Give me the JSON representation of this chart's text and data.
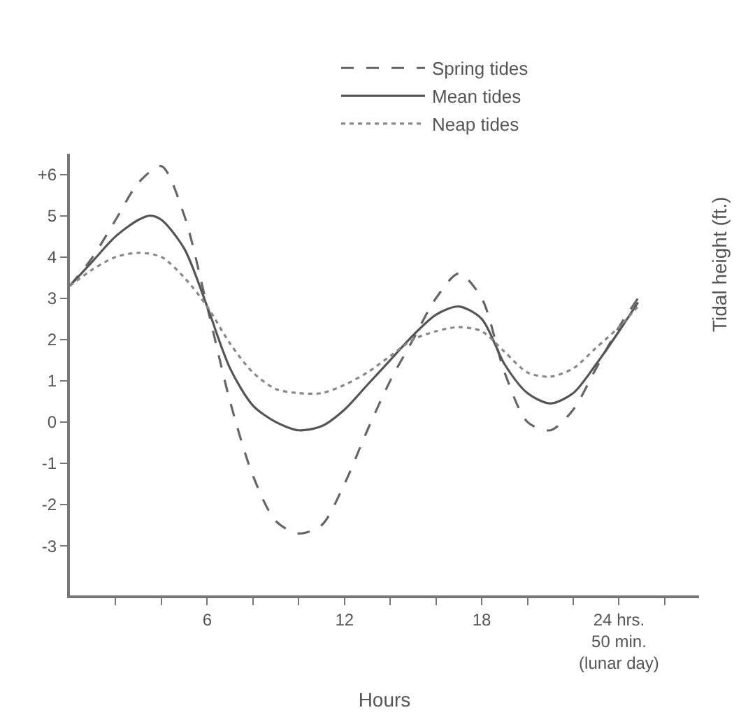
{
  "chart_data": {
    "type": "line",
    "xlabel": "Hours",
    "ylabel": "Tidal height (ft.)",
    "xlim": [
      0,
      27.5
    ],
    "ylim": [
      -4.2,
      6.5
    ],
    "xticks": [
      {
        "value": 2,
        "label": null
      },
      {
        "value": 4,
        "label": null
      },
      6,
      {
        "value": 8,
        "label": null
      },
      {
        "value": 10,
        "label": null
      },
      12,
      {
        "value": 14,
        "label": null
      },
      {
        "value": 16,
        "label": null
      },
      18,
      {
        "value": 20,
        "label": null
      },
      {
        "value": 22,
        "label": null
      },
      {
        "value": 24,
        "label": "24 hrs.\n50 min.\n(lunar day)"
      },
      {
        "value": 26,
        "label": null
      }
    ],
    "yticks": [
      -3,
      -2,
      -1,
      0,
      1,
      2,
      3,
      4,
      5,
      {
        "value": 6,
        "label": "+6"
      }
    ],
    "legend": "top right",
    "marker": "none",
    "series": [
      {
        "name": "Spring tides",
        "color": "#666666",
        "line_style": "dashed",
        "x": [
          0,
          1,
          2,
          3,
          4,
          5,
          6,
          7,
          8,
          9,
          10,
          11,
          12,
          13,
          14,
          15,
          16,
          17,
          18,
          19,
          20,
          21,
          22,
          23,
          24,
          24.83
        ],
        "values": [
          3.3,
          4.0,
          4.9,
          5.8,
          6.2,
          5.0,
          2.8,
          0.5,
          -1.3,
          -2.4,
          -2.7,
          -2.5,
          -1.5,
          -0.2,
          1.0,
          2.0,
          3.0,
          3.6,
          3.0,
          1.2,
          0.0,
          -0.2,
          0.3,
          1.3,
          2.3,
          3.0
        ]
      },
      {
        "name": "Mean tides",
        "color": "#555555",
        "line_style": "solid",
        "x": [
          0,
          1,
          2,
          3,
          3.5,
          4,
          5,
          6,
          7,
          8,
          9,
          10,
          11,
          12,
          13,
          14,
          15,
          16,
          17,
          18,
          19,
          20,
          21,
          22,
          23,
          24,
          24.83
        ],
        "values": [
          3.3,
          3.9,
          4.5,
          4.9,
          5.0,
          4.9,
          4.2,
          2.8,
          1.3,
          0.4,
          0.0,
          -0.2,
          -0.1,
          0.3,
          0.9,
          1.5,
          2.1,
          2.6,
          2.8,
          2.5,
          1.4,
          0.7,
          0.45,
          0.7,
          1.4,
          2.2,
          2.9
        ]
      },
      {
        "name": "Neap tides",
        "color": "#888888",
        "line_style": "dotted",
        "x": [
          0,
          1,
          2,
          3,
          4,
          5,
          6,
          7,
          8,
          9,
          10,
          11,
          12,
          13,
          14,
          15,
          16,
          17,
          18,
          19,
          20,
          21,
          22,
          23,
          24,
          24.83
        ],
        "values": [
          3.3,
          3.7,
          4.0,
          4.1,
          4.0,
          3.5,
          2.8,
          1.9,
          1.2,
          0.8,
          0.7,
          0.7,
          0.9,
          1.2,
          1.6,
          2.0,
          2.2,
          2.3,
          2.2,
          1.7,
          1.2,
          1.1,
          1.3,
          1.8,
          2.3,
          2.8
        ]
      }
    ]
  }
}
